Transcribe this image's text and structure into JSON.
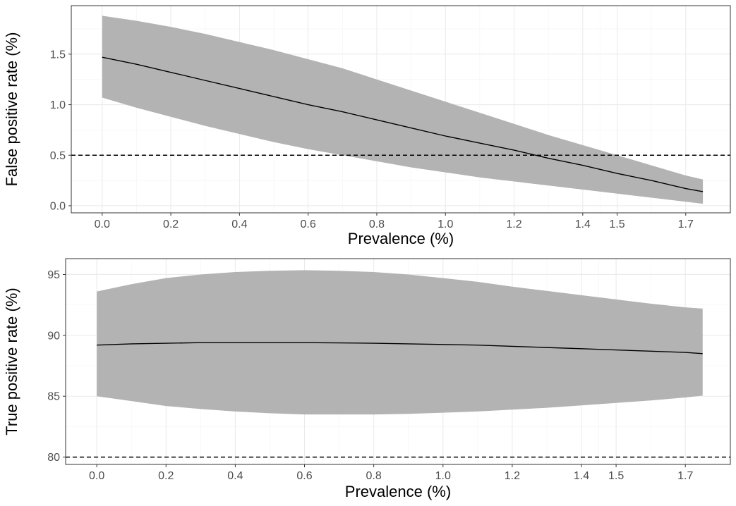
{
  "chart_data": [
    {
      "type": "area",
      "xlabel": "Prevalence (%)",
      "ylabel": "False positive rate (%)",
      "x_ticks": [
        0.0,
        0.2,
        0.4,
        0.6,
        0.8,
        1.0,
        1.2,
        1.4,
        1.5,
        1.7
      ],
      "x_tick_labels": [
        "0.0",
        "0.2",
        "0.4",
        "0.6",
        "0.8",
        "1.0",
        "1.2",
        "1.4",
        "1.5",
        "1.7"
      ],
      "y_ticks": [
        0.0,
        0.5,
        1.0,
        1.5
      ],
      "y_tick_labels": [
        "0.0",
        "0.5",
        "1.0",
        "1.5"
      ],
      "xlim": [
        -0.09,
        1.83
      ],
      "ylim": [
        -0.07,
        1.98
      ],
      "grid": true,
      "reference_line": 0.5,
      "x": [
        0.0,
        0.1,
        0.2,
        0.3,
        0.4,
        0.5,
        0.6,
        0.7,
        0.8,
        0.9,
        1.0,
        1.1,
        1.2,
        1.3,
        1.4,
        1.5,
        1.6,
        1.7,
        1.75
      ],
      "estimate": [
        1.47,
        1.4,
        1.32,
        1.24,
        1.16,
        1.08,
        1.0,
        0.93,
        0.85,
        0.77,
        0.69,
        0.62,
        0.55,
        0.47,
        0.4,
        0.32,
        0.25,
        0.17,
        0.14
      ],
      "lower": [
        1.07,
        0.97,
        0.88,
        0.79,
        0.71,
        0.63,
        0.56,
        0.5,
        0.44,
        0.38,
        0.33,
        0.28,
        0.24,
        0.2,
        0.16,
        0.12,
        0.08,
        0.04,
        0.02
      ],
      "upper": [
        1.88,
        1.83,
        1.77,
        1.7,
        1.62,
        1.54,
        1.45,
        1.36,
        1.25,
        1.14,
        1.03,
        0.92,
        0.81,
        0.7,
        0.6,
        0.5,
        0.4,
        0.3,
        0.26
      ],
      "colors": {
        "ribbon": "#b3b3b3",
        "line": "#000000",
        "reference": "#000000"
      }
    },
    {
      "type": "area",
      "xlabel": "Prevalence (%)",
      "ylabel": "True positive rate (%)",
      "x_ticks": [
        0.0,
        0.2,
        0.4,
        0.6,
        0.8,
        1.0,
        1.2,
        1.4,
        1.5,
        1.7
      ],
      "x_tick_labels": [
        "0.0",
        "0.2",
        "0.4",
        "0.6",
        "0.8",
        "1.0",
        "1.2",
        "1.4",
        "1.5",
        "1.7"
      ],
      "y_ticks": [
        80,
        85,
        90,
        95
      ],
      "y_tick_labels": [
        "80",
        "85",
        "90",
        "95"
      ],
      "xlim": [
        -0.09,
        1.83
      ],
      "ylim": [
        79.4,
        96.3
      ],
      "grid": true,
      "reference_line": 80,
      "x": [
        0.0,
        0.1,
        0.2,
        0.3,
        0.4,
        0.5,
        0.6,
        0.7,
        0.8,
        0.9,
        1.0,
        1.1,
        1.2,
        1.3,
        1.4,
        1.5,
        1.6,
        1.7,
        1.75
      ],
      "estimate": [
        89.2,
        89.3,
        89.35,
        89.4,
        89.4,
        89.4,
        89.4,
        89.38,
        89.35,
        89.3,
        89.25,
        89.2,
        89.1,
        89.0,
        88.9,
        88.8,
        88.7,
        88.6,
        88.5
      ],
      "lower": [
        85.0,
        84.6,
        84.2,
        83.95,
        83.75,
        83.6,
        83.5,
        83.5,
        83.5,
        83.55,
        83.65,
        83.75,
        83.9,
        84.05,
        84.25,
        84.45,
        84.65,
        84.9,
        85.05
      ],
      "upper": [
        93.6,
        94.2,
        94.7,
        95.0,
        95.2,
        95.3,
        95.35,
        95.3,
        95.2,
        95.0,
        94.7,
        94.4,
        94.0,
        93.65,
        93.3,
        92.95,
        92.6,
        92.3,
        92.2
      ],
      "colors": {
        "ribbon": "#b3b3b3",
        "line": "#000000",
        "reference": "#000000"
      }
    }
  ]
}
